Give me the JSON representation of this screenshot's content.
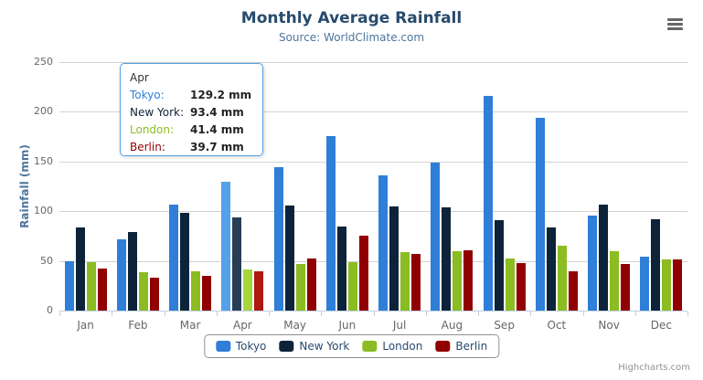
{
  "header": {
    "title": "Monthly Average Rainfall",
    "subtitle": "Source: WorldClimate.com"
  },
  "chart_data": {
    "type": "bar",
    "title": "Monthly Average Rainfall",
    "subtitle": "Source: WorldClimate.com",
    "categories": [
      "Jan",
      "Feb",
      "Mar",
      "Apr",
      "May",
      "Jun",
      "Jul",
      "Aug",
      "Sep",
      "Oct",
      "Nov",
      "Dec"
    ],
    "series": [
      {
        "name": "Tokyo",
        "color": "#2f7ed8",
        "hover_color": "#54a0ea",
        "values": [
          49.9,
          71.5,
          106.4,
          129.2,
          144.0,
          176.0,
          135.6,
          148.5,
          216.4,
          194.1,
          95.6,
          54.4
        ]
      },
      {
        "name": "New York",
        "color": "#0d233a",
        "hover_color": "#273d55",
        "values": [
          83.6,
          78.8,
          98.5,
          93.4,
          106.0,
          84.5,
          105.0,
          104.3,
          91.2,
          83.5,
          106.6,
          92.3
        ]
      },
      {
        "name": "London",
        "color": "#8bbc21",
        "hover_color": "#a6d63a",
        "values": [
          48.9,
          38.8,
          39.3,
          41.4,
          47.0,
          48.3,
          59.0,
          59.6,
          52.4,
          65.2,
          59.3,
          51.2
        ]
      },
      {
        "name": "Berlin",
        "color": "#910000",
        "hover_color": "#ad1a10",
        "values": [
          42.4,
          33.2,
          34.5,
          39.7,
          52.6,
          75.5,
          57.4,
          60.4,
          47.6,
          39.1,
          46.8,
          51.1
        ]
      }
    ],
    "xlabel": "",
    "ylabel": "Rainfall (mm)",
    "ylim": [
      0,
      250
    ],
    "yticks": [
      0,
      50,
      100,
      150,
      200,
      250
    ],
    "value_suffix": " mm",
    "grid": "horizontal",
    "legend_position": "bottom",
    "hovered_category": "Apr",
    "hovered_index": 3
  },
  "tooltip": {
    "month": "Apr",
    "rows": [
      {
        "label": "Tokyo:",
        "value": "129.2 mm",
        "color": "#2f7ed8"
      },
      {
        "label": "New York:",
        "value": "93.4 mm",
        "color": "#0d233a"
      },
      {
        "label": "London:",
        "value": "41.4 mm",
        "color": "#8bbc21"
      },
      {
        "label": "Berlin:",
        "value": "39.7 mm",
        "color": "#910000"
      }
    ]
  },
  "credits": {
    "label": "Highcharts.com"
  },
  "colors": {
    "title": "#274b6d",
    "subtitle": "#4d759e",
    "axis_labels": "#666666",
    "axis_line": "#c0d0e0",
    "gridline": "#d2d2d2",
    "tooltip_border": "#55a0e8"
  }
}
